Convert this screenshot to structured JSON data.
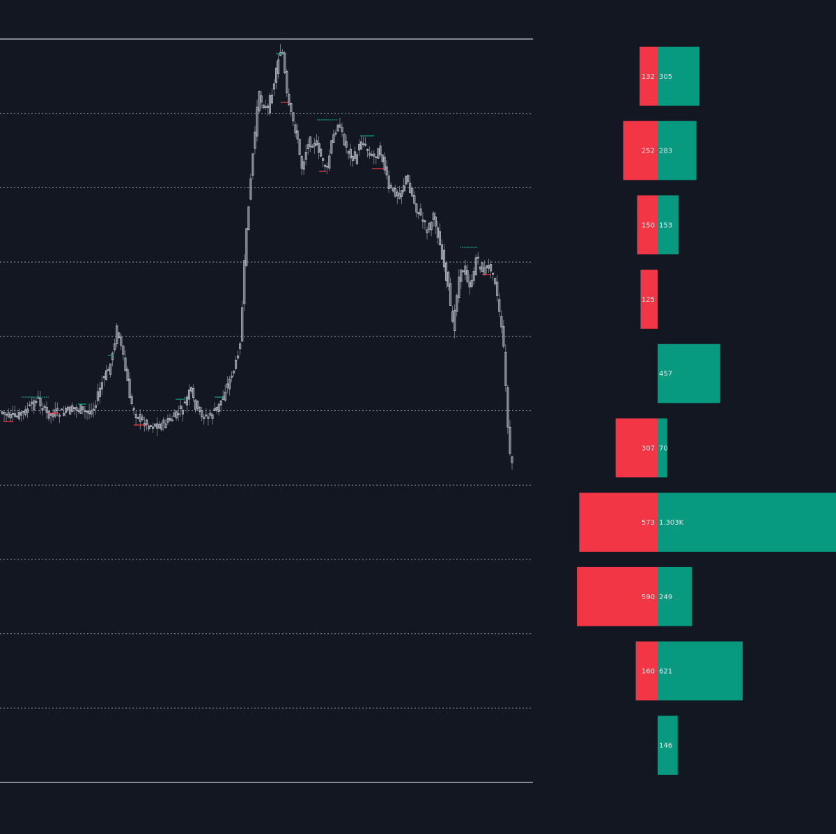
{
  "colors": {
    "background": "#131722",
    "candle": "#b8bcc6",
    "wick": "#8a8f9a",
    "sell": "#f23645",
    "buy": "#089981",
    "level_line": "#c9cbd1",
    "bar_text": "#e8e8e8"
  },
  "chart_data": {
    "type": "bar",
    "title": "",
    "description_free": true,
    "price_panel": {
      "candle_count": 240,
      "shape": "sideways range, sharp rally to the top level, gradual decline, then a steep drop near the end",
      "grid": "dotted horizontal lines at each volume-profile row boundary"
    },
    "volume_profile": {
      "rows": 10,
      "orientation": "horizontal, top row first",
      "sell": [
        132,
        252,
        150,
        125,
        0,
        307,
        573,
        590,
        160,
        0
      ],
      "buy": [
        305,
        283,
        153,
        0,
        457,
        70,
        1303,
        249,
        621,
        146
      ],
      "sell_labels": [
        "132",
        "252",
        "150",
        "125",
        "",
        "307",
        "573",
        "590",
        "160",
        ""
      ],
      "buy_labels": [
        "305",
        "283",
        "153",
        "",
        "457",
        "70",
        "1.303K",
        "249",
        "621",
        "146"
      ]
    }
  }
}
